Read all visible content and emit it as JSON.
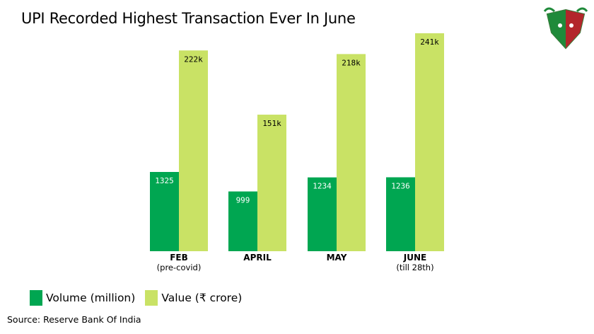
{
  "title": "UPI Recorded Highest Transaction Ever In June",
  "source": "Source: Reserve Bank Of India",
  "colors": {
    "volume": "#00a651",
    "value": "#c9e265"
  },
  "logo": {
    "icon": "bull-bear-logo-icon"
  },
  "chart_data": {
    "type": "bar",
    "categories": [
      "FEB",
      "APRIL",
      "MAY",
      "JUNE"
    ],
    "subcategories": [
      "(pre-covid)",
      "",
      "",
      "(till 28th)"
    ],
    "series": [
      {
        "name": "Volume (million)",
        "values": [
          1325,
          999,
          1234,
          1236
        ],
        "labels": [
          "1325",
          "999",
          "1234",
          "1236"
        ]
      },
      {
        "name": "Value (₹ crore)",
        "values": [
          222,
          151,
          218,
          241
        ],
        "labels": [
          "222k",
          "151k",
          "218k",
          "241k"
        ]
      }
    ],
    "legend": "bottom-left",
    "grid": false
  }
}
